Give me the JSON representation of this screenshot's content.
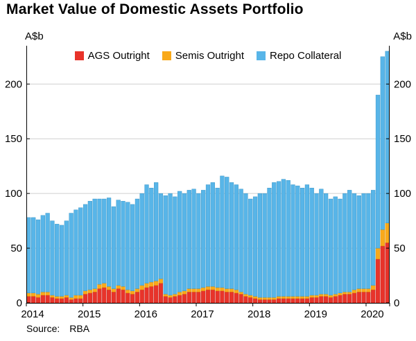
{
  "chart_data": {
    "type": "bar",
    "stacked": true,
    "title": "Market Value of Domestic Assets Portfolio",
    "y_unit": "A$b",
    "ylim": [
      0,
      235
    ],
    "yticks": [
      0,
      50,
      100,
      150,
      200
    ],
    "grid": true,
    "legend_position": "top-center",
    "source_label": "Source:",
    "source": "RBA",
    "x_years": [
      "2014",
      "2015",
      "2016",
      "2017",
      "2018",
      "2019",
      "2020"
    ],
    "months": [
      "2014-01",
      "2014-02",
      "2014-03",
      "2014-04",
      "2014-05",
      "2014-06",
      "2014-07",
      "2014-08",
      "2014-09",
      "2014-10",
      "2014-11",
      "2014-12",
      "2015-01",
      "2015-02",
      "2015-03",
      "2015-04",
      "2015-05",
      "2015-06",
      "2015-07",
      "2015-08",
      "2015-09",
      "2015-10",
      "2015-11",
      "2015-12",
      "2016-01",
      "2016-02",
      "2016-03",
      "2016-04",
      "2016-05",
      "2016-06",
      "2016-07",
      "2016-08",
      "2016-09",
      "2016-10",
      "2016-11",
      "2016-12",
      "2017-01",
      "2017-02",
      "2017-03",
      "2017-04",
      "2017-05",
      "2017-06",
      "2017-07",
      "2017-08",
      "2017-09",
      "2017-10",
      "2017-11",
      "2017-12",
      "2018-01",
      "2018-02",
      "2018-03",
      "2018-04",
      "2018-05",
      "2018-06",
      "2018-07",
      "2018-08",
      "2018-09",
      "2018-10",
      "2018-11",
      "2018-12",
      "2019-01",
      "2019-02",
      "2019-03",
      "2019-04",
      "2019-05",
      "2019-06",
      "2019-07",
      "2019-08",
      "2019-09",
      "2019-10",
      "2019-11",
      "2019-12",
      "2020-01",
      "2020-02",
      "2020-03",
      "2020-04",
      "2020-05"
    ],
    "series": [
      {
        "name": "AGS Outright",
        "color": "#e8332a",
        "border": "#c0221b",
        "values": [
          6,
          6,
          5,
          7,
          7,
          5,
          4,
          4,
          5,
          3,
          4,
          4,
          8,
          9,
          10,
          13,
          14,
          12,
          10,
          13,
          12,
          9,
          8,
          10,
          12,
          14,
          15,
          16,
          18,
          6,
          5,
          6,
          7,
          8,
          10,
          10,
          10,
          11,
          12,
          12,
          11,
          11,
          10,
          10,
          9,
          8,
          6,
          5,
          4,
          3,
          3,
          3,
          3,
          4,
          4,
          4,
          4,
          4,
          4,
          4,
          5,
          5,
          6,
          6,
          5,
          6,
          7,
          8,
          8,
          9,
          10,
          10,
          10,
          12,
          40,
          52,
          55
        ]
      },
      {
        "name": "Semis Outright",
        "color": "#f9a91a",
        "border": "#d68c00",
        "values": [
          3,
          3,
          3,
          3,
          3,
          2,
          2,
          2,
          2,
          2,
          3,
          3,
          3,
          3,
          3,
          4,
          4,
          3,
          3,
          3,
          3,
          3,
          3,
          3,
          4,
          4,
          4,
          4,
          4,
          2,
          2,
          2,
          3,
          3,
          3,
          3,
          3,
          3,
          3,
          3,
          3,
          3,
          3,
          3,
          3,
          2,
          2,
          2,
          2,
          2,
          2,
          2,
          2,
          2,
          2,
          2,
          2,
          2,
          2,
          2,
          2,
          2,
          2,
          2,
          2,
          2,
          2,
          2,
          2,
          3,
          3,
          3,
          3,
          4,
          10,
          15,
          18
        ]
      },
      {
        "name": "Repo Collateral",
        "color": "#58b5e8",
        "border": "#2f8fc2",
        "values": [
          69,
          69,
          68,
          70,
          72,
          68,
          66,
          65,
          68,
          77,
          78,
          80,
          79,
          81,
          82,
          78,
          77,
          81,
          75,
          78,
          78,
          80,
          79,
          82,
          84,
          90,
          86,
          90,
          78,
          90,
          93,
          89,
          92,
          89,
          90,
          91,
          87,
          89,
          93,
          95,
          91,
          102,
          102,
          97,
          96,
          94,
          92,
          88,
          91,
          95,
          95,
          100,
          105,
          105,
          107,
          106,
          102,
          101,
          99,
          102,
          98,
          93,
          96,
          92,
          88,
          89,
          86,
          90,
          93,
          88,
          85,
          87,
          87,
          87,
          140,
          158,
          157
        ]
      }
    ]
  }
}
